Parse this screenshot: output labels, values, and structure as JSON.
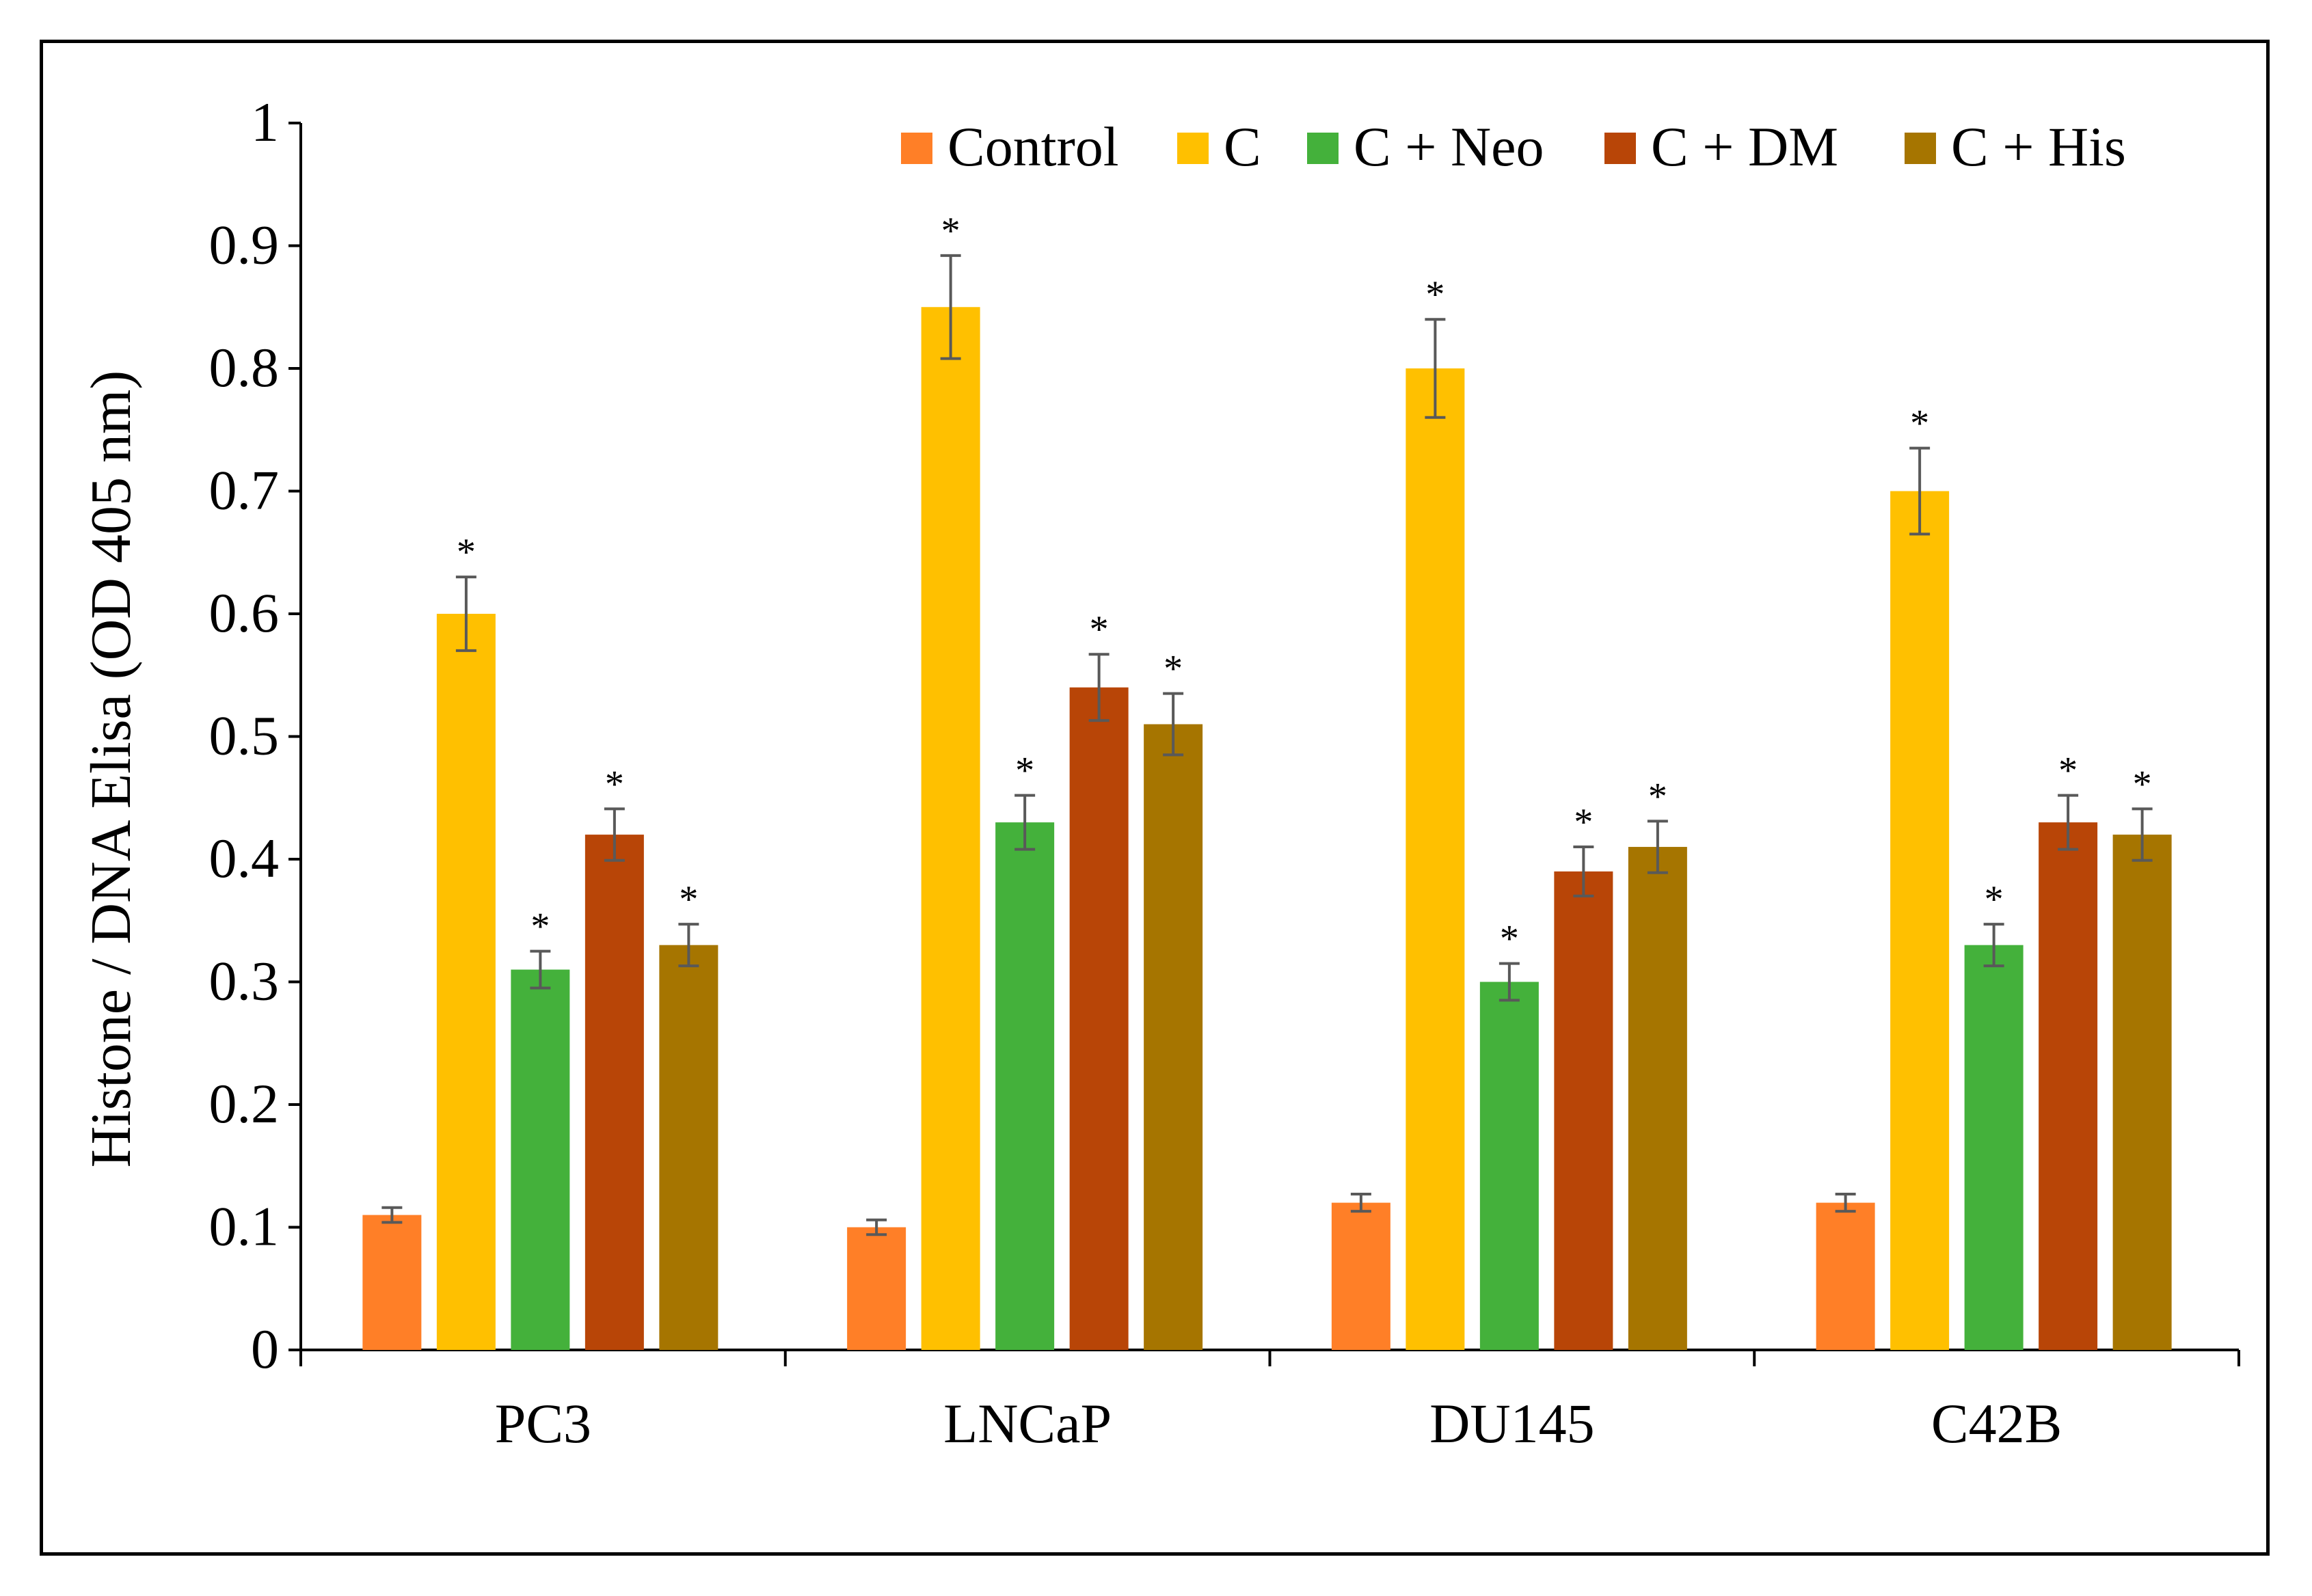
{
  "chart_data": {
    "type": "bar",
    "title": "",
    "xlabel": "",
    "ylabel": "Histone / DNA Elisa (OD 405 nm)",
    "ylim": [
      0,
      1
    ],
    "yticks": [
      "0",
      "0.1",
      "0.2",
      "0.3",
      "0.4",
      "0.5",
      "0.6",
      "0.7",
      "0.8",
      "0.9",
      "1"
    ],
    "categories": [
      "PC3",
      "LNCaP",
      "DU145",
      "C42B"
    ],
    "grid": false,
    "legend_position": "top-right",
    "series": [
      {
        "name": "Control",
        "color": "#FF7F27",
        "values": [
          0.11,
          0.1,
          0.12,
          0.12
        ],
        "errors": [
          0.006,
          0.006,
          0.007,
          0.007
        ],
        "significant": [
          false,
          false,
          false,
          false
        ]
      },
      {
        "name": "C",
        "color": "#FFC000",
        "values": [
          0.6,
          0.85,
          0.8,
          0.7
        ],
        "errors": [
          0.03,
          0.042,
          0.04,
          0.035
        ],
        "significant": [
          true,
          true,
          true,
          true
        ]
      },
      {
        "name": "C + Neo",
        "color": "#44B13B",
        "values": [
          0.31,
          0.43,
          0.3,
          0.33
        ],
        "errors": [
          0.015,
          0.022,
          0.015,
          0.017
        ],
        "significant": [
          true,
          true,
          true,
          true
        ]
      },
      {
        "name": "C + DM",
        "color": "#B84507",
        "values": [
          0.42,
          0.54,
          0.39,
          0.43
        ],
        "errors": [
          0.021,
          0.027,
          0.02,
          0.022
        ],
        "significant": [
          true,
          true,
          true,
          true
        ]
      },
      {
        "name": "C + His",
        "color": "#A67500",
        "values": [
          0.33,
          0.51,
          0.41,
          0.42
        ],
        "errors": [
          0.017,
          0.025,
          0.021,
          0.021
        ],
        "significant": [
          true,
          true,
          true,
          true
        ]
      }
    ],
    "significance_marker": "*",
    "error_bar_color": "#595959"
  }
}
